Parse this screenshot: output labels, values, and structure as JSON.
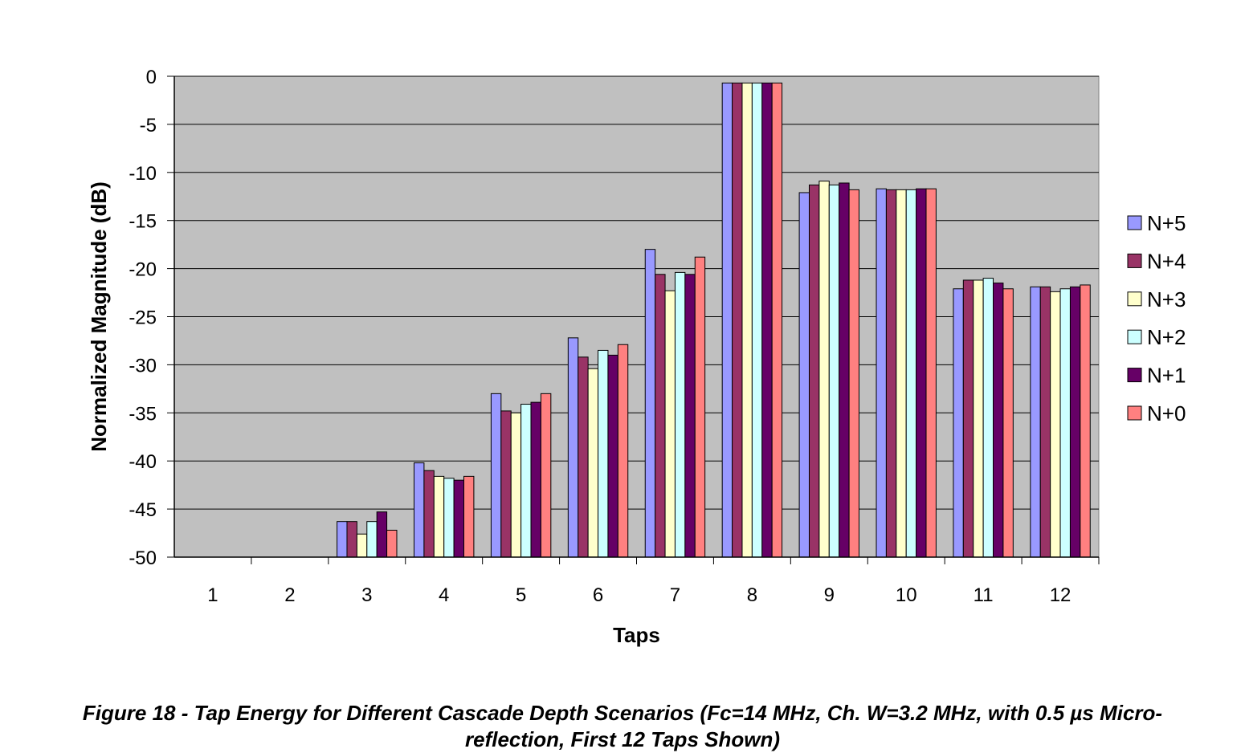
{
  "chart_data": {
    "type": "bar",
    "title": "",
    "xlabel": "Taps",
    "ylabel": "Normalized Magnitude (dB)",
    "ylim": [
      -50,
      0
    ],
    "yticks": [
      "0",
      "-5",
      "-10",
      "-15",
      "-20",
      "-25",
      "-30",
      "-35",
      "-40",
      "-45",
      "-50"
    ],
    "grid": true,
    "legend_position": "right",
    "categories": [
      "1",
      "2",
      "3",
      "4",
      "5",
      "6",
      "7",
      "8",
      "9",
      "10",
      "11",
      "12"
    ],
    "series": [
      {
        "name": "N+5",
        "color": "#9999ff",
        "values": [
          null,
          null,
          -46.3,
          -40.2,
          -33.0,
          -27.2,
          -18.0,
          -0.7,
          -12.1,
          -11.7,
          -22.1,
          -21.9
        ]
      },
      {
        "name": "N+4",
        "color": "#993366",
        "values": [
          null,
          null,
          -46.3,
          -41.0,
          -34.8,
          -29.2,
          -20.6,
          -0.7,
          -11.3,
          -11.8,
          -21.2,
          -21.9
        ]
      },
      {
        "name": "N+3",
        "color": "#ffffcc",
        "values": [
          null,
          null,
          -47.6,
          -41.6,
          -35.0,
          -30.4,
          -22.3,
          -0.7,
          -10.9,
          -11.8,
          -21.2,
          -22.4
        ]
      },
      {
        "name": "N+2",
        "color": "#ccffff",
        "values": [
          null,
          null,
          -46.3,
          -41.8,
          -34.1,
          -28.5,
          -20.4,
          -0.7,
          -11.3,
          -11.8,
          -21.0,
          -22.1
        ]
      },
      {
        "name": "N+1",
        "color": "#660066",
        "values": [
          null,
          null,
          -45.3,
          -42.0,
          -33.9,
          -29.0,
          -20.6,
          -0.7,
          -11.1,
          -11.7,
          -21.5,
          -21.9
        ]
      },
      {
        "name": "N+0",
        "color": "#ff8080",
        "values": [
          null,
          null,
          -47.2,
          -41.6,
          -33.0,
          -27.9,
          -18.8,
          -0.7,
          -11.8,
          -11.7,
          -22.1,
          -21.7
        ]
      }
    ]
  },
  "caption": {
    "line1": "Figure 18 - Tap Energy for Different Cascade Depth Scenarios (Fc=14 MHz, Ch. W=3.2 MHz, with 0.5 µs Micro-",
    "line2": "reflection, First 12 Taps Shown)"
  },
  "style": {
    "plot_background": "#c0c0c0",
    "gridline_color": "#000000"
  }
}
